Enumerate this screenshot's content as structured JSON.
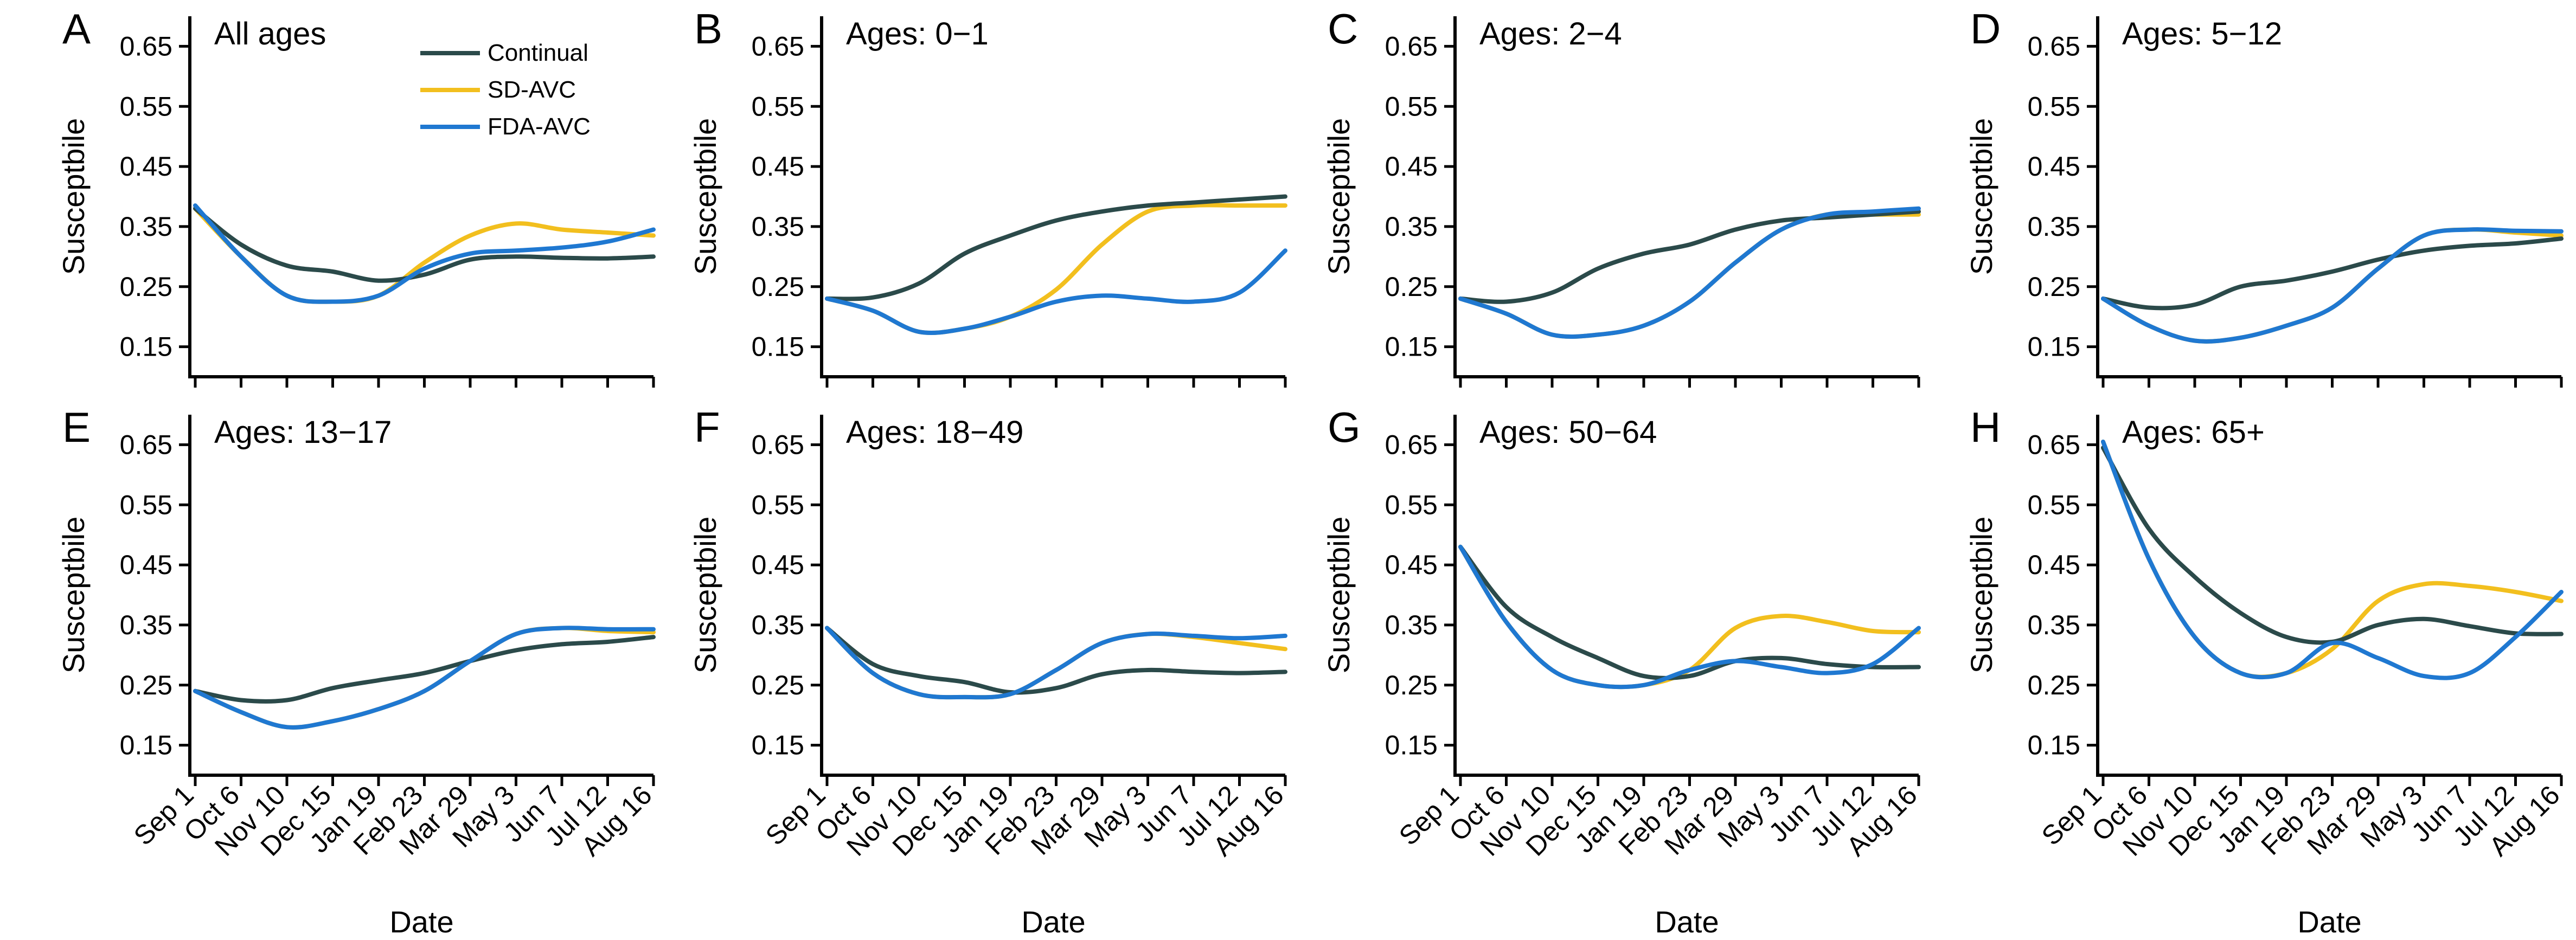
{
  "colors": {
    "Continual": "#2b4a4a",
    "SD-AVC": "#f2bf1e",
    "FDA-AVC": "#1f78d1",
    "axis": "#000000"
  },
  "legend": {
    "placement": "top-right of panel A",
    "entries": [
      "Continual",
      "SD-AVC",
      "FDA-AVC"
    ]
  },
  "chart_data": [
    {
      "panel": "A",
      "type": "line",
      "title": "All ages",
      "xlabel": "Date",
      "ylabel": "Susceptbile",
      "x": [
        "Sep 1",
        "Oct 6",
        "Nov 10",
        "Dec 15",
        "Jan 19",
        "Feb 23",
        "Mar 29",
        "May 3",
        "Jun 7",
        "Jul 12",
        "Aug 16"
      ],
      "ylim": [
        0.1,
        0.7
      ],
      "yticks": [
        0.15,
        0.25,
        0.35,
        0.45,
        0.55,
        0.65
      ],
      "show_xticklabels": false,
      "show_xlabel": false,
      "series": [
        {
          "name": "Continual",
          "values": [
            0.38,
            0.32,
            0.285,
            0.275,
            0.26,
            0.27,
            0.295,
            0.3,
            0.298,
            0.297,
            0.3
          ]
        },
        {
          "name": "SD-AVC",
          "values": [
            0.38,
            0.3,
            0.235,
            0.225,
            0.235,
            0.29,
            0.335,
            0.355,
            0.345,
            0.34,
            0.335
          ]
        },
        {
          "name": "FDA-AVC",
          "values": [
            0.385,
            0.3,
            0.235,
            0.225,
            0.235,
            0.28,
            0.305,
            0.31,
            0.315,
            0.325,
            0.345
          ]
        }
      ]
    },
    {
      "panel": "B",
      "type": "line",
      "title": "Ages: 0−1",
      "xlabel": "Date",
      "ylabel": "Susceptbile",
      "x": [
        "Sep 1",
        "Oct 6",
        "Nov 10",
        "Dec 15",
        "Jan 19",
        "Feb 23",
        "Mar 29",
        "May 3",
        "Jun 7",
        "Jul 12",
        "Aug 16"
      ],
      "ylim": [
        0.1,
        0.7
      ],
      "yticks": [
        0.15,
        0.25,
        0.35,
        0.45,
        0.55,
        0.65
      ],
      "show_xticklabels": false,
      "show_xlabel": false,
      "series": [
        {
          "name": "Continual",
          "values": [
            0.23,
            0.232,
            0.255,
            0.305,
            0.335,
            0.36,
            0.375,
            0.385,
            0.39,
            0.395,
            0.4
          ]
        },
        {
          "name": "SD-AVC",
          "values": [
            0.23,
            0.21,
            0.175,
            0.18,
            0.2,
            0.245,
            0.32,
            0.375,
            0.385,
            0.385,
            0.385
          ]
        },
        {
          "name": "FDA-AVC",
          "values": [
            0.23,
            0.21,
            0.175,
            0.18,
            0.2,
            0.225,
            0.235,
            0.23,
            0.225,
            0.24,
            0.31
          ]
        }
      ]
    },
    {
      "panel": "C",
      "type": "line",
      "title": "Ages: 2−4",
      "xlabel": "Date",
      "ylabel": "Susceptbile",
      "x": [
        "Sep 1",
        "Oct 6",
        "Nov 10",
        "Dec 15",
        "Jan 19",
        "Feb 23",
        "Mar 29",
        "May 3",
        "Jun 7",
        "Jul 12",
        "Aug 16"
      ],
      "ylim": [
        0.1,
        0.7
      ],
      "yticks": [
        0.15,
        0.25,
        0.35,
        0.45,
        0.55,
        0.65
      ],
      "show_xticklabels": false,
      "show_xlabel": false,
      "series": [
        {
          "name": "Continual",
          "values": [
            0.23,
            0.225,
            0.24,
            0.28,
            0.305,
            0.32,
            0.345,
            0.36,
            0.365,
            0.37,
            0.375
          ]
        },
        {
          "name": "SD-AVC",
          "values": [
            0.23,
            0.205,
            0.17,
            0.17,
            0.185,
            0.225,
            0.29,
            0.345,
            0.37,
            0.37,
            0.37
          ]
        },
        {
          "name": "FDA-AVC",
          "values": [
            0.23,
            0.205,
            0.17,
            0.17,
            0.185,
            0.225,
            0.29,
            0.345,
            0.37,
            0.375,
            0.38
          ]
        }
      ]
    },
    {
      "panel": "D",
      "type": "line",
      "title": "Ages: 5−12",
      "xlabel": "Date",
      "ylabel": "Susceptbile",
      "x": [
        "Sep 1",
        "Oct 6",
        "Nov 10",
        "Dec 15",
        "Jan 19",
        "Feb 23",
        "Mar 29",
        "May 3",
        "Jun 7",
        "Jul 12",
        "Aug 16"
      ],
      "ylim": [
        0.1,
        0.7
      ],
      "yticks": [
        0.15,
        0.25,
        0.35,
        0.45,
        0.55,
        0.65
      ],
      "show_xticklabels": false,
      "show_xlabel": false,
      "series": [
        {
          "name": "Continual",
          "values": [
            0.23,
            0.215,
            0.22,
            0.25,
            0.26,
            0.275,
            0.295,
            0.31,
            0.318,
            0.322,
            0.33
          ]
        },
        {
          "name": "SD-AVC",
          "values": [
            0.23,
            0.185,
            0.16,
            0.165,
            0.185,
            0.215,
            0.28,
            0.335,
            0.345,
            0.34,
            0.335
          ]
        },
        {
          "name": "FDA-AVC",
          "values": [
            0.23,
            0.185,
            0.16,
            0.165,
            0.185,
            0.215,
            0.28,
            0.335,
            0.345,
            0.343,
            0.342
          ]
        }
      ]
    },
    {
      "panel": "E",
      "type": "line",
      "title": "Ages: 13−17",
      "xlabel": "Date",
      "ylabel": "Susceptbile",
      "x": [
        "Sep 1",
        "Oct 6",
        "Nov 10",
        "Dec 15",
        "Jan 19",
        "Feb 23",
        "Mar 29",
        "May 3",
        "Jun 7",
        "Jul 12",
        "Aug 16"
      ],
      "ylim": [
        0.1,
        0.7
      ],
      "yticks": [
        0.15,
        0.25,
        0.35,
        0.45,
        0.55,
        0.65
      ],
      "show_xticklabels": true,
      "show_xlabel": true,
      "series": [
        {
          "name": "Continual",
          "values": [
            0.24,
            0.225,
            0.225,
            0.245,
            0.258,
            0.27,
            0.29,
            0.308,
            0.318,
            0.322,
            0.33
          ]
        },
        {
          "name": "SD-AVC",
          "values": [
            0.24,
            0.205,
            0.18,
            0.19,
            0.21,
            0.24,
            0.29,
            0.335,
            0.345,
            0.34,
            0.338
          ]
        },
        {
          "name": "FDA-AVC",
          "values": [
            0.24,
            0.205,
            0.18,
            0.19,
            0.21,
            0.24,
            0.29,
            0.335,
            0.345,
            0.343,
            0.343
          ]
        }
      ]
    },
    {
      "panel": "F",
      "type": "line",
      "title": "Ages: 18−49",
      "xlabel": "Date",
      "ylabel": "Susceptbile",
      "x": [
        "Sep 1",
        "Oct 6",
        "Nov 10",
        "Dec 15",
        "Jan 19",
        "Feb 23",
        "Mar 29",
        "May 3",
        "Jun 7",
        "Jul 12",
        "Aug 16"
      ],
      "ylim": [
        0.1,
        0.7
      ],
      "yticks": [
        0.15,
        0.25,
        0.35,
        0.45,
        0.55,
        0.65
      ],
      "show_xticklabels": true,
      "show_xlabel": true,
      "series": [
        {
          "name": "Continual",
          "values": [
            0.345,
            0.285,
            0.265,
            0.255,
            0.238,
            0.245,
            0.268,
            0.275,
            0.272,
            0.27,
            0.272
          ]
        },
        {
          "name": "SD-AVC",
          "values": [
            0.345,
            0.27,
            0.235,
            0.23,
            0.235,
            0.275,
            0.32,
            0.335,
            0.33,
            0.32,
            0.31
          ]
        },
        {
          "name": "FDA-AVC",
          "values": [
            0.345,
            0.27,
            0.235,
            0.23,
            0.235,
            0.275,
            0.32,
            0.335,
            0.332,
            0.328,
            0.332
          ]
        }
      ]
    },
    {
      "panel": "G",
      "type": "line",
      "title": "Ages: 50−64",
      "xlabel": "Date",
      "ylabel": "Susceptbile",
      "x": [
        "Sep 1",
        "Oct 6",
        "Nov 10",
        "Dec 15",
        "Jan 19",
        "Feb 23",
        "Mar 29",
        "May 3",
        "Jun 7",
        "Jul 12",
        "Aug 16"
      ],
      "ylim": [
        0.1,
        0.7
      ],
      "yticks": [
        0.15,
        0.25,
        0.35,
        0.45,
        0.55,
        0.65
      ],
      "show_xticklabels": true,
      "show_xlabel": true,
      "series": [
        {
          "name": "Continual",
          "values": [
            0.48,
            0.38,
            0.33,
            0.295,
            0.265,
            0.265,
            0.29,
            0.295,
            0.285,
            0.28,
            0.28
          ]
        },
        {
          "name": "SD-AVC",
          "values": [
            0.48,
            0.355,
            0.275,
            0.25,
            0.25,
            0.275,
            0.345,
            0.365,
            0.355,
            0.34,
            0.338
          ]
        },
        {
          "name": "FDA-AVC",
          "values": [
            0.48,
            0.355,
            0.275,
            0.25,
            0.25,
            0.275,
            0.29,
            0.28,
            0.27,
            0.285,
            0.345
          ]
        }
      ]
    },
    {
      "panel": "H",
      "type": "line",
      "title": "Ages: 65+",
      "xlabel": "Date",
      "ylabel": "Susceptbile",
      "x": [
        "Sep 1",
        "Oct 6",
        "Nov 10",
        "Dec 15",
        "Jan 19",
        "Feb 23",
        "Mar 29",
        "May 3",
        "Jun 7",
        "Jul 12",
        "Aug 16"
      ],
      "ylim": [
        0.1,
        0.7
      ],
      "yticks": [
        0.15,
        0.25,
        0.35,
        0.45,
        0.55,
        0.65
      ],
      "show_xticklabels": true,
      "show_xlabel": true,
      "series": [
        {
          "name": "Continual",
          "values": [
            0.645,
            0.51,
            0.43,
            0.37,
            0.33,
            0.322,
            0.35,
            0.36,
            0.348,
            0.336,
            0.335
          ]
        },
        {
          "name": "SD-AVC",
          "values": [
            0.655,
            0.46,
            0.33,
            0.27,
            0.27,
            0.31,
            0.39,
            0.418,
            0.415,
            0.405,
            0.39
          ]
        },
        {
          "name": "FDA-AVC",
          "values": [
            0.655,
            0.46,
            0.33,
            0.27,
            0.27,
            0.32,
            0.295,
            0.265,
            0.27,
            0.33,
            0.405
          ]
        }
      ]
    }
  ]
}
